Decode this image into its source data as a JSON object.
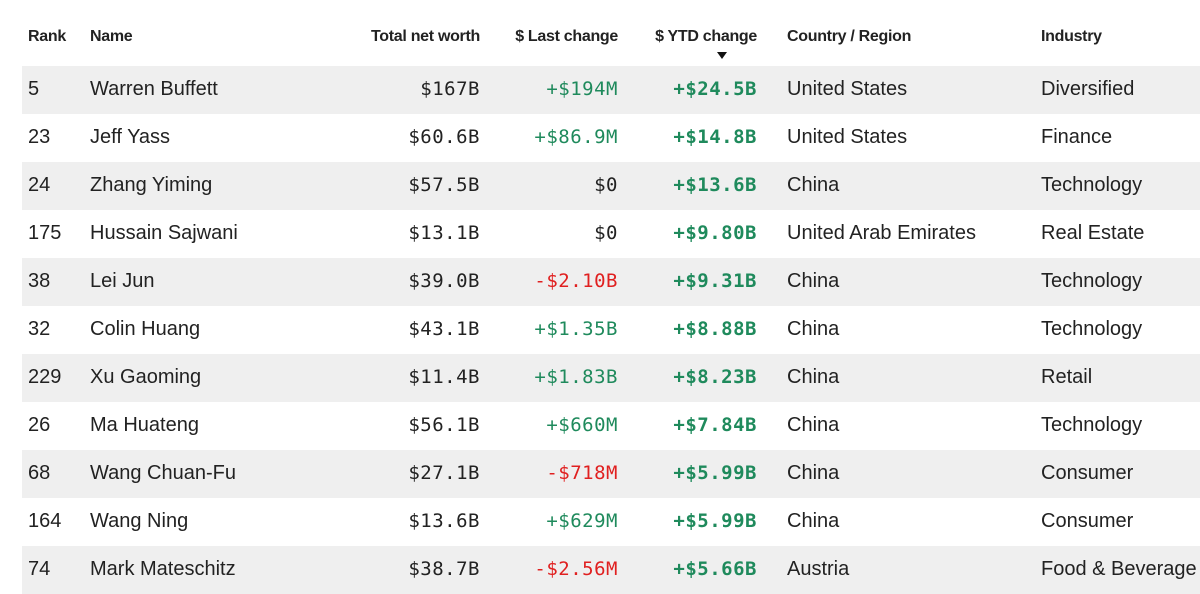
{
  "colors": {
    "positive": "#1f8a5c",
    "negative": "#e02020",
    "zero": "#222222",
    "stripe": "#efefef"
  },
  "headers": {
    "rank": "Rank",
    "name": "Name",
    "net_worth": "Total net worth",
    "last_change": "$ Last change",
    "ytd_change": "$ YTD change",
    "country": "Country / Region",
    "industry": "Industry",
    "sort_icon": "caret-down-icon"
  },
  "rows": [
    {
      "rank": "5",
      "name": "Warren Buffett",
      "net_worth": "$167B",
      "last_change": "+$194M",
      "ytd_change": "+$24.5B",
      "country": "United States",
      "industry": "Diversified"
    },
    {
      "rank": "23",
      "name": "Jeff Yass",
      "net_worth": "$60.6B",
      "last_change": "+$86.9M",
      "ytd_change": "+$14.8B",
      "country": "United States",
      "industry": "Finance"
    },
    {
      "rank": "24",
      "name": "Zhang Yiming",
      "net_worth": "$57.5B",
      "last_change": "$0",
      "ytd_change": "+$13.6B",
      "country": "China",
      "industry": "Technology"
    },
    {
      "rank": "175",
      "name": "Hussain Sajwani",
      "net_worth": "$13.1B",
      "last_change": "$0",
      "ytd_change": "+$9.80B",
      "country": "United Arab Emirates",
      "industry": "Real Estate"
    },
    {
      "rank": "38",
      "name": "Lei Jun",
      "net_worth": "$39.0B",
      "last_change": "-$2.10B",
      "ytd_change": "+$9.31B",
      "country": "China",
      "industry": "Technology"
    },
    {
      "rank": "32",
      "name": "Colin Huang",
      "net_worth": "$43.1B",
      "last_change": "+$1.35B",
      "ytd_change": "+$8.88B",
      "country": "China",
      "industry": "Technology"
    },
    {
      "rank": "229",
      "name": "Xu Gaoming",
      "net_worth": "$11.4B",
      "last_change": "+$1.83B",
      "ytd_change": "+$8.23B",
      "country": "China",
      "industry": "Retail"
    },
    {
      "rank": "26",
      "name": "Ma Huateng",
      "net_worth": "$56.1B",
      "last_change": "+$660M",
      "ytd_change": "+$7.84B",
      "country": "China",
      "industry": "Technology"
    },
    {
      "rank": "68",
      "name": "Wang Chuan-Fu",
      "net_worth": "$27.1B",
      "last_change": "-$718M",
      "ytd_change": "+$5.99B",
      "country": "China",
      "industry": "Consumer"
    },
    {
      "rank": "164",
      "name": "Wang Ning",
      "net_worth": "$13.6B",
      "last_change": "+$629M",
      "ytd_change": "+$5.99B",
      "country": "China",
      "industry": "Consumer"
    },
    {
      "rank": "74",
      "name": "Mark Mateschitz",
      "net_worth": "$38.7B",
      "last_change": "-$2.56M",
      "ytd_change": "+$5.66B",
      "country": "Austria",
      "industry": "Food & Beverage"
    }
  ]
}
